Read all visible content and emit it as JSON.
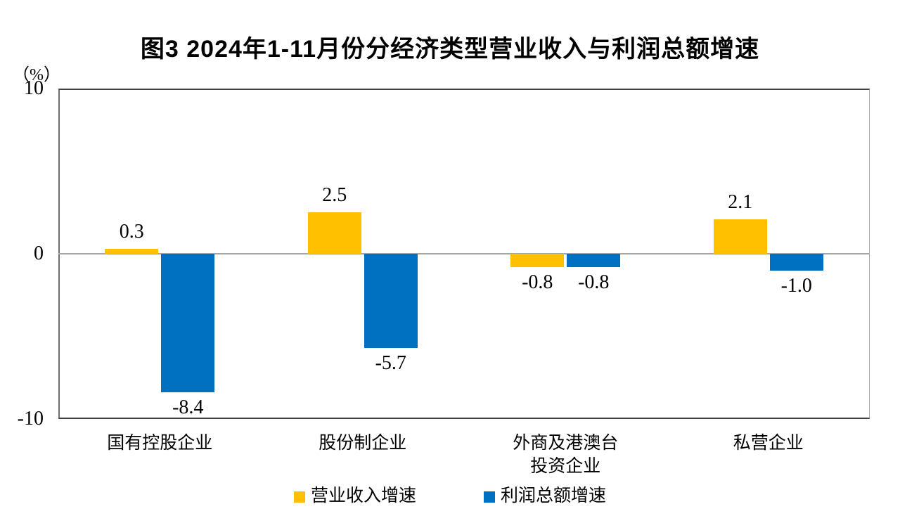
{
  "title": "图3 2024年1-11月份分经济类型营业收入与利润总额增速",
  "unit_label": "（%）",
  "colors": {
    "revenue": "#FFC000",
    "profit": "#0070C0",
    "zero_line": "#A6A6A6",
    "axis_border": "#3F3F3F",
    "text": "#000000"
  },
  "chart_data": {
    "type": "bar",
    "title": "图3 2024年1-11月份分经济类型营业收入与利润总额增速",
    "ylabel": "（%）",
    "ylim": [
      -10,
      10
    ],
    "yticks": [
      10,
      0,
      -10
    ],
    "grid": false,
    "legend_position": "bottom",
    "categories": [
      "国有控股企业",
      "股份制企业",
      "外商及港澳台\n投资企业",
      "私营企业"
    ],
    "series": [
      {
        "name": "营业收入增速",
        "color_key": "revenue",
        "values": [
          0.3,
          2.5,
          -0.8,
          2.1
        ]
      },
      {
        "name": "利润总额增速",
        "color_key": "profit",
        "values": [
          -8.4,
          -5.7,
          -0.8,
          -1.0
        ]
      }
    ],
    "data_labels": [
      [
        "0.3",
        "2.5",
        "-0.8",
        "2.1"
      ],
      [
        "-8.4",
        "-5.7",
        "-0.8",
        "-1.0"
      ]
    ]
  },
  "legend": {
    "items": [
      {
        "label": "营业收入增速",
        "color_key": "revenue"
      },
      {
        "label": "利润总额增速",
        "color_key": "profit"
      }
    ]
  }
}
